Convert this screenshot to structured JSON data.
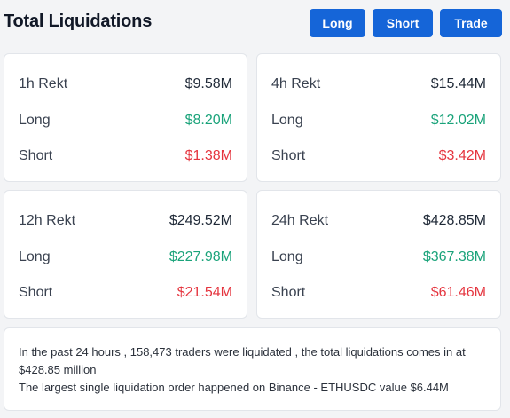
{
  "header": {
    "title": "Total Liquidations",
    "buttons": {
      "long": "Long",
      "short": "Short",
      "trade": "Trade"
    },
    "button_color": "#1565d8"
  },
  "colors": {
    "long": "#1aa37a",
    "short": "#e5353f"
  },
  "cards": [
    {
      "period_label": "1h Rekt",
      "total": "$9.58M",
      "long_label": "Long",
      "long_value": "$8.20M",
      "short_label": "Short",
      "short_value": "$1.38M"
    },
    {
      "period_label": "4h Rekt",
      "total": "$15.44M",
      "long_label": "Long",
      "long_value": "$12.02M",
      "short_label": "Short",
      "short_value": "$3.42M"
    },
    {
      "period_label": "12h Rekt",
      "total": "$249.52M",
      "long_label": "Long",
      "long_value": "$227.98M",
      "short_label": "Short",
      "short_value": "$21.54M"
    },
    {
      "period_label": "24h Rekt",
      "total": "$428.85M",
      "long_label": "Long",
      "long_value": "$367.38M",
      "short_label": "Short",
      "short_value": "$61.46M"
    }
  ],
  "summary": {
    "line1": "In the past 24 hours , 158,473 traders were liquidated , the total liquidations comes in at $428.85 million",
    "line2": "The largest single liquidation order happened on Binance - ETHUSDC value $6.44M"
  }
}
